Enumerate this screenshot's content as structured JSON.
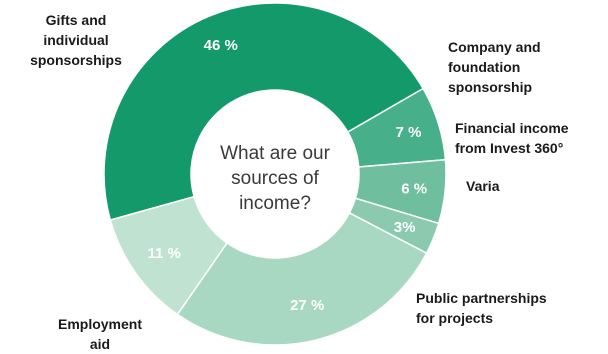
{
  "chart_data": {
    "type": "pie",
    "center_text": "What are our\nsources of\nincome?",
    "slices": [
      {
        "label": "Company and\nfoundation\nsponsorship",
        "value": 7,
        "value_label": "7 %",
        "color": "#47b08a"
      },
      {
        "label": "Financial income\nfrom Invest 360°",
        "value": 6,
        "value_label": "6 %",
        "color": "#6fbf9e"
      },
      {
        "label": "Varia",
        "value": 3,
        "value_label": "3%",
        "color": "#8ccab0"
      },
      {
        "label": "Public partnerships\nfor projects",
        "value": 27,
        "value_label": "27 %",
        "color": "#a8d8c2"
      },
      {
        "label": "Employment\naid",
        "value": 11,
        "value_label": "11 %",
        "color": "#bfe2d1"
      },
      {
        "label": "Gifts and\nindividual\nsponsorships",
        "value": 46,
        "value_label": "46 %",
        "color": "#13996a"
      }
    ]
  }
}
